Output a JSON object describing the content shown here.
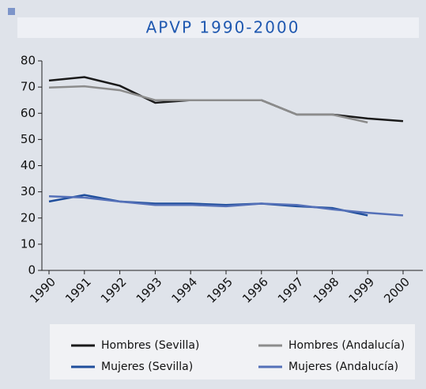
{
  "chart_data": {
    "type": "line",
    "title": "APVP 1990-2000",
    "categories": [
      "1990",
      "1991",
      "1992",
      "1993",
      "1994",
      "1995",
      "1996",
      "1997",
      "1998",
      "1999",
      "2000"
    ],
    "ylim": [
      0,
      80
    ],
    "yticks": [
      0,
      10,
      20,
      30,
      40,
      50,
      60,
      70,
      80
    ],
    "series": [
      {
        "name": "Hombres (Sevilla)",
        "color": "#1a1a1a",
        "values": [
          72.5,
          73.8,
          70.5,
          64,
          65,
          65,
          65,
          59.5,
          59.5,
          58,
          57
        ]
      },
      {
        "name": "Hombres (Andalucía)",
        "color": "#8c8c8c",
        "values": [
          69.8,
          70.3,
          68.8,
          65,
          65,
          65,
          65,
          59.5,
          59.5,
          56.5,
          null
        ]
      },
      {
        "name": "Mujeres (Sevilla)",
        "color": "#1f4e9c",
        "values": [
          26.3,
          28.8,
          26.3,
          25.5,
          25.5,
          25,
          25.5,
          24.5,
          23.8,
          21,
          null
        ]
      },
      {
        "name": "Mujeres (Andalucía)",
        "color": "#5470b8",
        "values": [
          28.3,
          27.8,
          26.3,
          25,
          25,
          24.5,
          25.5,
          25,
          23.3,
          22,
          21
        ]
      }
    ]
  }
}
